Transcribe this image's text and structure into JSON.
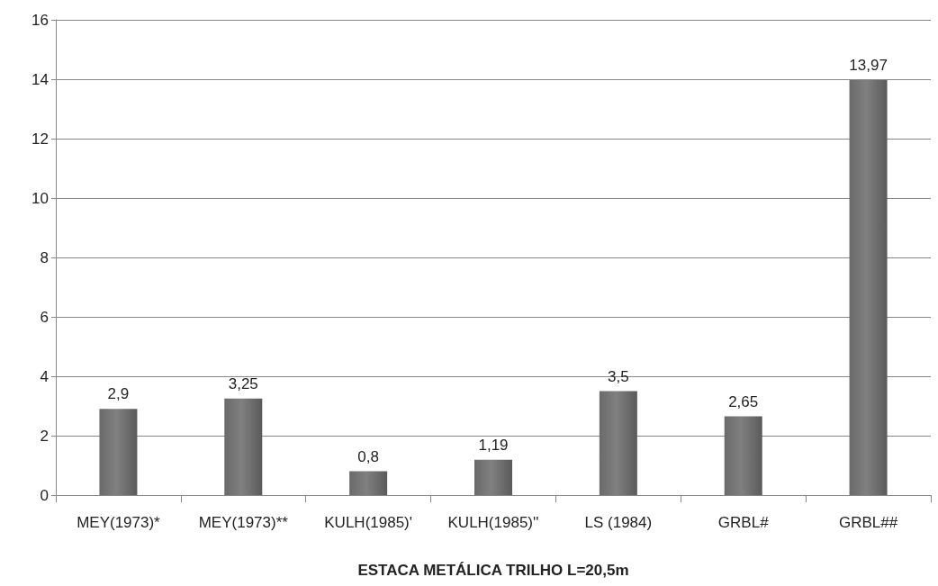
{
  "chart_data": {
    "type": "bar",
    "xlabel": "ESTACA METÁLICA TRILHO L=20,5m",
    "categories": [
      "MEY(1973)*",
      "MEY(1973)**",
      "KULH(1985)'",
      "KULH(1985)''",
      "LS (1984)",
      "GRBL#",
      "GRBL##"
    ],
    "values": [
      2.9,
      3.25,
      0.8,
      1.19,
      3.5,
      2.65,
      13.97
    ],
    "value_labels": [
      "2,9",
      "3,25",
      "0,8",
      "1,19",
      "3,5",
      "2,65",
      "13,97"
    ],
    "color": "#808080",
    "ylim": [
      0,
      16
    ],
    "yticks": [
      0,
      2,
      4,
      6,
      8,
      10,
      12,
      14,
      16
    ],
    "grid": "y"
  }
}
